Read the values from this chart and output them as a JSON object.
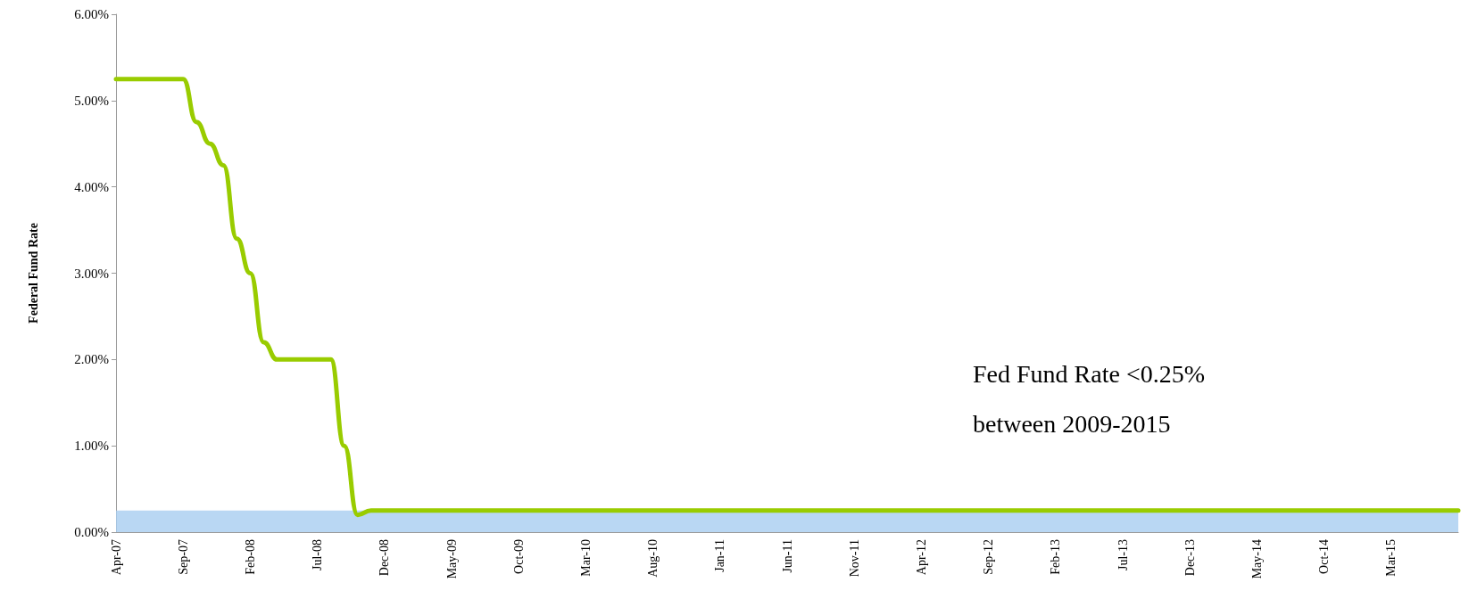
{
  "chart_data": {
    "type": "line",
    "ylabel": "Federal Fund Rate",
    "categories": [
      "Apr-07",
      null,
      null,
      null,
      null,
      "Sep-07",
      null,
      null,
      null,
      null,
      "Feb-08",
      null,
      null,
      null,
      null,
      "Jul-08",
      null,
      null,
      null,
      null,
      "Dec-08",
      null,
      null,
      null,
      null,
      "May-09",
      null,
      null,
      null,
      null,
      "Oct-09",
      null,
      null,
      null,
      null,
      "Mar-10",
      null,
      null,
      null,
      null,
      "Aug-10",
      null,
      null,
      null,
      null,
      "Jan-11",
      null,
      null,
      null,
      null,
      "Jun-11",
      null,
      null,
      null,
      null,
      "Nov-11",
      null,
      null,
      null,
      null,
      "Apr-12",
      null,
      null,
      null,
      null,
      "Sep-12",
      null,
      null,
      null,
      null,
      "Feb-13",
      null,
      null,
      null,
      null,
      "Jul-13",
      null,
      null,
      null,
      null,
      "Dec-13",
      null,
      null,
      null,
      null,
      "May-14",
      null,
      null,
      null,
      null,
      "Oct-14",
      null,
      null,
      null,
      null,
      "Mar-15",
      null,
      null,
      null,
      null,
      null
    ],
    "series": [
      {
        "color": "#99cc00",
        "values": [
          5.25,
          5.25,
          5.25,
          5.25,
          5.25,
          5.25,
          4.75,
          4.5,
          4.25,
          3.4,
          3.0,
          2.2,
          2.0,
          2.0,
          2.0,
          2.0,
          2.0,
          1.0,
          0.2,
          0.25,
          0.25,
          0.25,
          0.25,
          0.25,
          0.25,
          0.25,
          0.25,
          0.25,
          0.25,
          0.25,
          0.25,
          0.25,
          0.25,
          0.25,
          0.25,
          0.25,
          0.25,
          0.25,
          0.25,
          0.25,
          0.25,
          0.25,
          0.25,
          0.25,
          0.25,
          0.25,
          0.25,
          0.25,
          0.25,
          0.25,
          0.25,
          0.25,
          0.25,
          0.25,
          0.25,
          0.25,
          0.25,
          0.25,
          0.25,
          0.25,
          0.25,
          0.25,
          0.25,
          0.25,
          0.25,
          0.25,
          0.25,
          0.25,
          0.25,
          0.25,
          0.25,
          0.25,
          0.25,
          0.25,
          0.25,
          0.25,
          0.25,
          0.25,
          0.25,
          0.25,
          0.25,
          0.25,
          0.25,
          0.25,
          0.25,
          0.25,
          0.25,
          0.25,
          0.25,
          0.25,
          0.25,
          0.25,
          0.25,
          0.25,
          0.25,
          0.25,
          0.25,
          0.25,
          0.25,
          0.25,
          0.25
        ]
      }
    ],
    "ylim": [
      0,
      6
    ],
    "yticks": [
      {
        "value": 0,
        "label": "0.00%"
      },
      {
        "value": 1,
        "label": "1.00%"
      },
      {
        "value": 2,
        "label": "2.00%"
      },
      {
        "value": 3,
        "label": "3.00%"
      },
      {
        "value": 4,
        "label": "4.00%"
      },
      {
        "value": 5,
        "label": "5.00%"
      },
      {
        "value": 6,
        "label": "6.00%"
      }
    ],
    "bands": [
      {
        "axis": "y",
        "from": 0,
        "to": 0.25,
        "color": "#a8cdf0"
      }
    ],
    "annotations": [
      "Fed Fund Rate <0.25%",
      "between 2009-2015"
    ],
    "grid": false,
    "marker": "none",
    "line_style": "solid"
  }
}
